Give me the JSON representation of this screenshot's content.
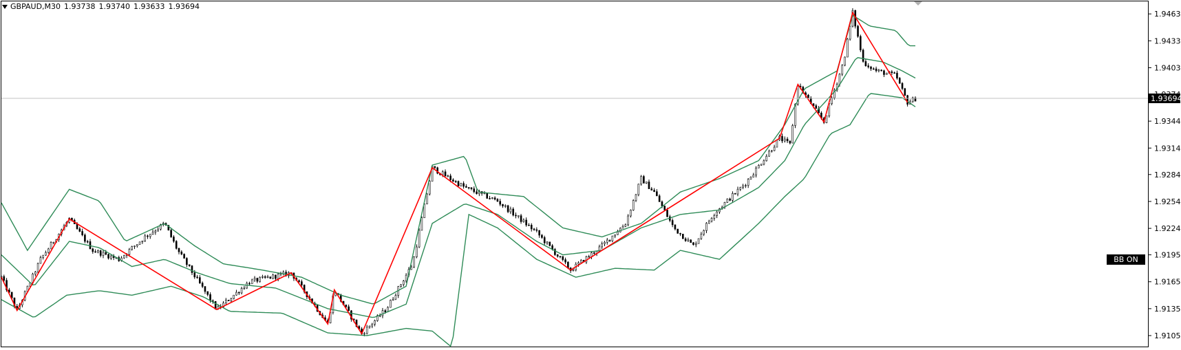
{
  "header": {
    "symbol_timeframe": "GBPAUD,M30",
    "open": "1.93738",
    "high": "1.93740",
    "low": "1.93633",
    "close": "1.93694"
  },
  "badge": {
    "label": "BB ON"
  },
  "colors": {
    "band": "#2e8b57",
    "zigzag": "#ff0000",
    "candle": "#000000",
    "priceline": "#c0c0c0",
    "badge_bg": "#000000"
  },
  "chart_data": {
    "type": "candlestick",
    "y_ticks": [
      "1.94635",
      "1.94335",
      "1.94035",
      "1.93740",
      "1.93440",
      "1.93140",
      "1.92845",
      "1.92545",
      "1.92245",
      "1.91950",
      "1.91650",
      "1.91350",
      "1.91050"
    ],
    "ylim": [
      1.9092,
      1.9479
    ],
    "current_price": "1.93694",
    "indicators": [
      "Bollinger Bands",
      "ZigZag"
    ],
    "zigzag": [
      {
        "bar": 0,
        "price": 1.917
      },
      {
        "bar": 12,
        "price": 1.9133
      },
      {
        "bar": 52,
        "price": 1.9235
      },
      {
        "bar": 165,
        "price": 1.9134
      },
      {
        "bar": 222,
        "price": 1.9175
      },
      {
        "bar": 250,
        "price": 1.9118
      },
      {
        "bar": 255,
        "price": 1.9156
      },
      {
        "bar": 276,
        "price": 1.9107
      },
      {
        "bar": 330,
        "price": 1.9292
      },
      {
        "bar": 436,
        "price": 1.9178
      },
      {
        "bar": 596,
        "price": 1.9325
      },
      {
        "bar": 610,
        "price": 1.9385
      },
      {
        "bar": 630,
        "price": 1.9343
      },
      {
        "bar": 652,
        "price": 1.9465
      },
      {
        "bar": 694,
        "price": 1.9365
      }
    ],
    "bands": {
      "upper": [
        [
          0,
          1.9253
        ],
        [
          20,
          1.92
        ],
        [
          52,
          1.9268
        ],
        [
          75,
          1.9255
        ],
        [
          95,
          1.921
        ],
        [
          125,
          1.923
        ],
        [
          148,
          1.9205
        ],
        [
          170,
          1.9185
        ],
        [
          200,
          1.9178
        ],
        [
          230,
          1.917
        ],
        [
          260,
          1.915
        ],
        [
          285,
          1.914
        ],
        [
          310,
          1.916
        ],
        [
          330,
          1.9295
        ],
        [
          355,
          1.9305
        ],
        [
          365,
          1.9265
        ],
        [
          400,
          1.926
        ],
        [
          430,
          1.9225
        ],
        [
          460,
          1.9215
        ],
        [
          490,
          1.923
        ],
        [
          520,
          1.9265
        ],
        [
          550,
          1.928
        ],
        [
          580,
          1.93
        ],
        [
          600,
          1.934
        ],
        [
          615,
          1.938
        ],
        [
          640,
          1.94
        ],
        [
          652,
          1.9462
        ],
        [
          665,
          1.945
        ],
        [
          685,
          1.9445
        ],
        [
          695,
          1.9428
        ],
        [
          700,
          1.9428
        ]
      ],
      "middle": [
        [
          0,
          1.9195
        ],
        [
          25,
          1.916
        ],
        [
          52,
          1.921
        ],
        [
          75,
          1.9203
        ],
        [
          100,
          1.9182
        ],
        [
          125,
          1.919
        ],
        [
          150,
          1.9175
        ],
        [
          175,
          1.9163
        ],
        [
          210,
          1.9158
        ],
        [
          250,
          1.9135
        ],
        [
          285,
          1.9125
        ],
        [
          310,
          1.914
        ],
        [
          330,
          1.923
        ],
        [
          355,
          1.9252
        ],
        [
          380,
          1.924
        ],
        [
          410,
          1.921
        ],
        [
          430,
          1.9195
        ],
        [
          460,
          1.92
        ],
        [
          490,
          1.9225
        ],
        [
          520,
          1.924
        ],
        [
          550,
          1.9245
        ],
        [
          580,
          1.927
        ],
        [
          600,
          1.93
        ],
        [
          615,
          1.934
        ],
        [
          640,
          1.938
        ],
        [
          655,
          1.9415
        ],
        [
          675,
          1.941
        ],
        [
          690,
          1.94
        ],
        [
          700,
          1.9392
        ]
      ],
      "lower": [
        [
          0,
          1.9145
        ],
        [
          25,
          1.9125
        ],
        [
          50,
          1.915
        ],
        [
          75,
          1.9155
        ],
        [
          100,
          1.915
        ],
        [
          130,
          1.916
        ],
        [
          155,
          1.9148
        ],
        [
          175,
          1.9132
        ],
        [
          215,
          1.913
        ],
        [
          250,
          1.9108
        ],
        [
          280,
          1.9105
        ],
        [
          310,
          1.9113
        ],
        [
          330,
          1.911
        ],
        [
          345,
          1.9092
        ],
        [
          358,
          1.924
        ],
        [
          380,
          1.9225
        ],
        [
          410,
          1.919
        ],
        [
          440,
          1.917
        ],
        [
          470,
          1.918
        ],
        [
          500,
          1.9178
        ],
        [
          520,
          1.92
        ],
        [
          550,
          1.919
        ],
        [
          580,
          1.923
        ],
        [
          600,
          1.926
        ],
        [
          615,
          1.928
        ],
        [
          635,
          1.933
        ],
        [
          650,
          1.934
        ],
        [
          665,
          1.9375
        ],
        [
          690,
          1.937
        ],
        [
          700,
          1.936
        ]
      ]
    },
    "price_path": [
      [
        0,
        1.917
      ],
      [
        12,
        1.9133
      ],
      [
        30,
        1.919
      ],
      [
        52,
        1.9235
      ],
      [
        70,
        1.92
      ],
      [
        90,
        1.919
      ],
      [
        110,
        1.9215
      ],
      [
        125,
        1.923
      ],
      [
        135,
        1.92
      ],
      [
        165,
        1.9134
      ],
      [
        190,
        1.9165
      ],
      [
        222,
        1.9175
      ],
      [
        250,
        1.9118
      ],
      [
        255,
        1.9156
      ],
      [
        276,
        1.9107
      ],
      [
        295,
        1.9135
      ],
      [
        315,
        1.9185
      ],
      [
        330,
        1.9292
      ],
      [
        355,
        1.927
      ],
      [
        380,
        1.9255
      ],
      [
        410,
        1.922
      ],
      [
        436,
        1.9178
      ],
      [
        460,
        1.9205
      ],
      [
        478,
        1.923
      ],
      [
        490,
        1.928
      ],
      [
        500,
        1.9265
      ],
      [
        515,
        1.9225
      ],
      [
        530,
        1.9205
      ],
      [
        545,
        1.924
      ],
      [
        570,
        1.9275
      ],
      [
        596,
        1.9325
      ],
      [
        604,
        1.9318
      ],
      [
        610,
        1.9385
      ],
      [
        630,
        1.9343
      ],
      [
        645,
        1.941
      ],
      [
        652,
        1.9465
      ],
      [
        660,
        1.941
      ],
      [
        670,
        1.94
      ],
      [
        685,
        1.9395
      ],
      [
        694,
        1.9365
      ],
      [
        700,
        1.9369
      ]
    ]
  }
}
